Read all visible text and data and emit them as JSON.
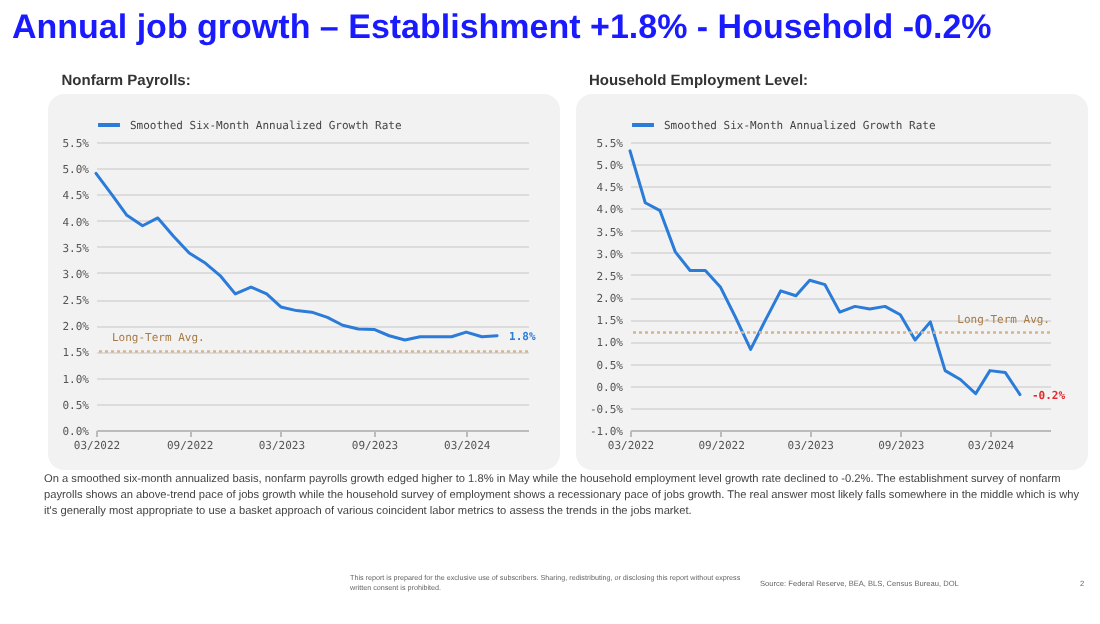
{
  "chart_data": [
    {
      "type": "other",
      "title": "Annual job growth – Establishment +1.8% - Household -0.2%"
    },
    {
      "type": "line",
      "title": "Nonfarm Payrolls:",
      "x": [
        "2022-03",
        "2022-04",
        "2022-05",
        "2022-06",
        "2022-07",
        "2022-08",
        "2022-09",
        "2022-10",
        "2022-11",
        "2022-12",
        "2023-01",
        "2023-02",
        "2023-03",
        "2023-04",
        "2023-05",
        "2023-06",
        "2023-07",
        "2023-08",
        "2023-09",
        "2023-10",
        "2023-11",
        "2023-12",
        "2024-01",
        "2024-02",
        "2024-03",
        "2024-04",
        "2024-05"
      ],
      "series": [
        {
          "name": "Smoothed Six-Month Annualized Growth Rate",
          "color": "#2b7bd8",
          "values": [
            4.9,
            4.5,
            4.1,
            3.9,
            4.05,
            3.7,
            3.38,
            3.2,
            2.95,
            2.6,
            2.73,
            2.6,
            2.35,
            2.28,
            2.25,
            2.15,
            2.0,
            1.93,
            1.92,
            1.8,
            1.72,
            1.78,
            1.78,
            1.78,
            1.87,
            1.78,
            1.8
          ]
        }
      ],
      "xlim": [
        "2022-03",
        "2024-07"
      ],
      "xticks": [
        {
          "value": "2022-03",
          "label": "03/2022"
        },
        {
          "value": "2022-09",
          "label": "09/2022"
        },
        {
          "value": "2023-03",
          "label": "03/2023"
        },
        {
          "value": "2023-09",
          "label": "09/2023"
        },
        {
          "value": "2024-03",
          "label": "03/2024"
        }
      ],
      "ylim": [
        0,
        5.5
      ],
      "yticks": [
        {
          "value": 0,
          "label": "0.0%"
        },
        {
          "value": 0.5,
          "label": "0.5%"
        },
        {
          "value": 1,
          "label": "1.0%"
        },
        {
          "value": 1.5,
          "label": "1.5%"
        },
        {
          "value": 2,
          "label": "2.0%"
        },
        {
          "value": 2.5,
          "label": "2.5%"
        },
        {
          "value": 3,
          "label": "3.0%"
        },
        {
          "value": 3.5,
          "label": "3.5%"
        },
        {
          "value": 4,
          "label": "4.0%"
        },
        {
          "value": 4.5,
          "label": "4.5%"
        },
        {
          "value": 5,
          "label": "5.0%"
        },
        {
          "value": 5.5,
          "label": "5.5%"
        }
      ],
      "grid": "y",
      "legend": "top",
      "ref_lines": [
        {
          "axis": "y",
          "value": 1.5,
          "label": "Long-Term Avg.",
          "color": "#d8b48c",
          "line_style": "dotted"
        }
      ],
      "annotations": [
        {
          "text": "1.8%",
          "x": "2024-05",
          "y": 1.8
        }
      ]
    },
    {
      "type": "line",
      "title": "Household Employment Level:",
      "x": [
        "2022-03",
        "2022-04",
        "2022-05",
        "2022-06",
        "2022-07",
        "2022-08",
        "2022-09",
        "2022-10",
        "2022-11",
        "2022-12",
        "2023-01",
        "2023-02",
        "2023-03",
        "2023-04",
        "2023-05",
        "2023-06",
        "2023-07",
        "2023-08",
        "2023-09",
        "2023-10",
        "2023-11",
        "2023-12",
        "2024-01",
        "2024-02",
        "2024-03",
        "2024-04",
        "2024-05"
      ],
      "series": [
        {
          "name": "Smoothed Six-Month Annualized Growth Rate",
          "color": "#2b7bd8",
          "values": [
            5.3,
            4.13,
            3.95,
            3.02,
            2.6,
            2.6,
            2.22,
            1.55,
            0.82,
            1.48,
            2.14,
            2.03,
            2.38,
            2.28,
            1.66,
            1.79,
            1.73,
            1.79,
            1.6,
            1.03,
            1.44,
            0.34,
            0.14,
            -0.18,
            0.34,
            0.3,
            -0.2
          ]
        }
      ],
      "xlim": [
        "2022-03",
        "2024-07"
      ],
      "xticks": [
        {
          "value": "2022-03",
          "label": "03/2022"
        },
        {
          "value": "2022-09",
          "label": "09/2022"
        },
        {
          "value": "2023-03",
          "label": "03/2023"
        },
        {
          "value": "2023-09",
          "label": "09/2023"
        },
        {
          "value": "2024-03",
          "label": "03/2024"
        }
      ],
      "ylim": [
        -1,
        5.5
      ],
      "yticks": [
        {
          "value": -1,
          "label": "-1.0%"
        },
        {
          "value": -0.5,
          "label": "-0.5%"
        },
        {
          "value": 0,
          "label": "0.0%"
        },
        {
          "value": 0.5,
          "label": "0.5%"
        },
        {
          "value": 1,
          "label": "1.0%"
        },
        {
          "value": 1.5,
          "label": "1.5%"
        },
        {
          "value": 2,
          "label": "2.0%"
        },
        {
          "value": 2.5,
          "label": "2.5%"
        },
        {
          "value": 3,
          "label": "3.0%"
        },
        {
          "value": 3.5,
          "label": "3.5%"
        },
        {
          "value": 4,
          "label": "4.0%"
        },
        {
          "value": 4.5,
          "label": "4.5%"
        },
        {
          "value": 5,
          "label": "5.0%"
        },
        {
          "value": 5.5,
          "label": "5.5%"
        }
      ],
      "grid": "y",
      "legend": "top",
      "ref_lines": [
        {
          "axis": "y",
          "value": 1.2,
          "label": "Long-Term Avg.",
          "color": "#d8b48c",
          "line_style": "dotted"
        }
      ],
      "annotations": [
        {
          "text": "-0.2%",
          "x": "2024-05",
          "y": -0.2
        }
      ]
    },
    {
      "type": "other",
      "annotations": [
        "On a smoothed six-month annualized basis, nonfarm payrolls growth edged higher to 1.8% in May while the household employment level growth rate declined to -0.2%. The establishment survey of nonfarm payrolls shows an above-trend pace of jobs growth while the household survey of employment shows a recessionary pace of jobs growth. The real answer most likely falls somewhere in the middle which is why it's generally most appropriate to use a basket approach of various coincident labor metrics to assess the trends in the jobs market.",
        "This report is prepared for the exclusive use of subscribers. Sharing, redistributing, or disclosing this report without express written consent is prohibited.",
        "Source: Federal Reserve, BEA, BLS, Census Bureau, DOL",
        "2"
      ]
    }
  ]
}
